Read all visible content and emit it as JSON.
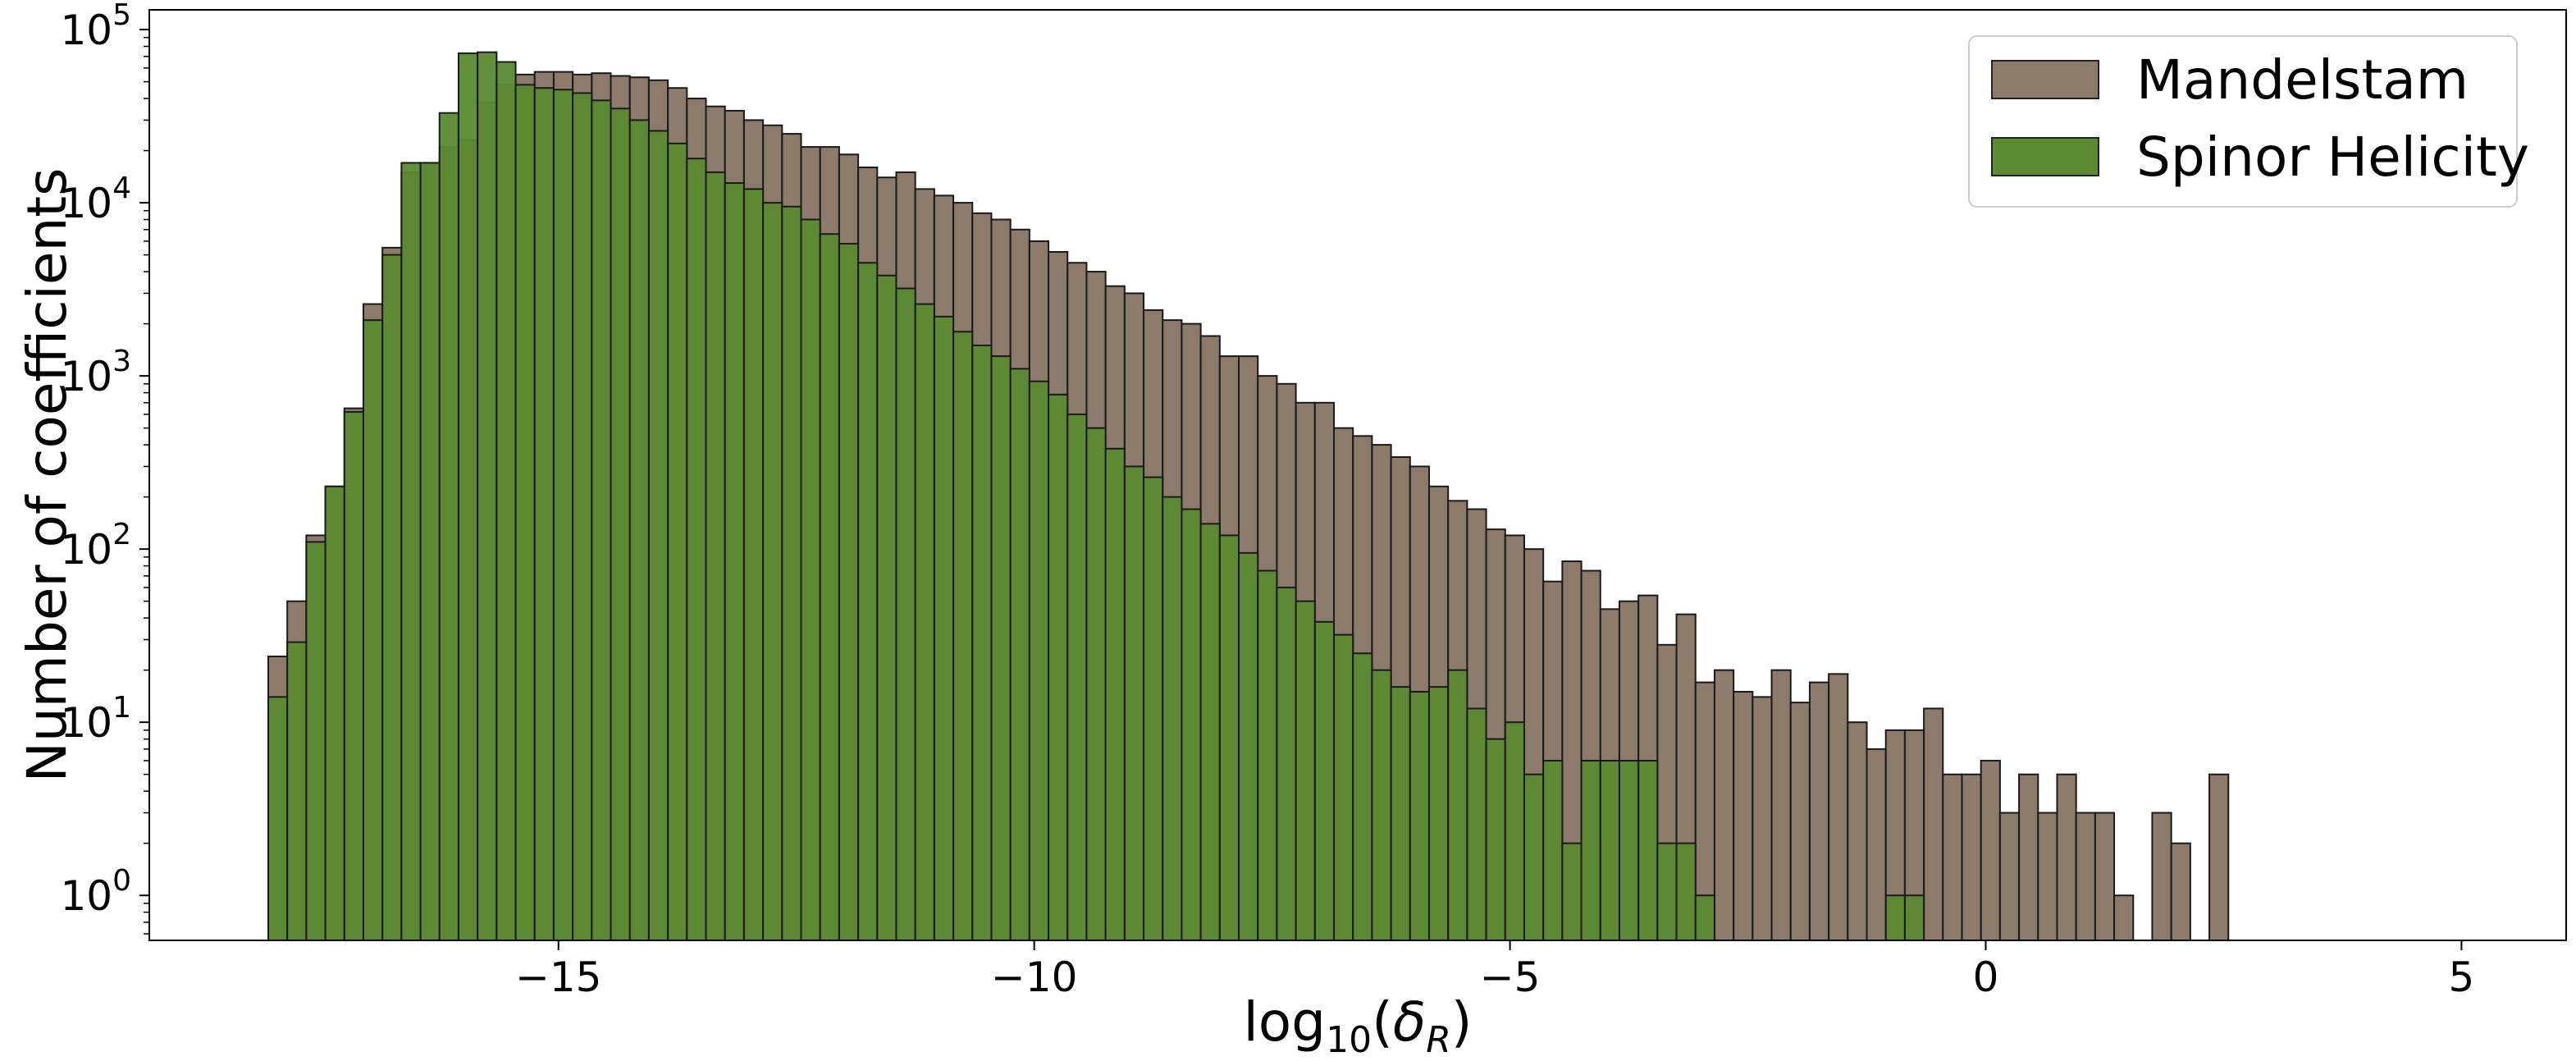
{
  "chart_data": {
    "type": "bar",
    "title": "",
    "xlabel": "log10(δR)",
    "xlabel_parts": {
      "base": "log",
      "sub": "10",
      "open": "(",
      "symbol": "δ",
      "symbol_sub": "R",
      "close": ")"
    },
    "ylabel": "Number of coefficients",
    "yscale": "log",
    "xlim": [
      -19.3,
      6.1
    ],
    "ylim": [
      0.55,
      130000
    ],
    "x_ticks": [
      -15,
      -10,
      -5,
      0,
      5
    ],
    "x_tick_labels": [
      "−15",
      "−10",
      "−5",
      "0",
      "5"
    ],
    "y_ticks": [
      1,
      10,
      100,
      1000,
      10000,
      100000
    ],
    "y_tick_labels": [
      {
        "base": "10",
        "exp": "0"
      },
      {
        "base": "10",
        "exp": "1"
      },
      {
        "base": "10",
        "exp": "2"
      },
      {
        "base": "10",
        "exp": "3"
      },
      {
        "base": "10",
        "exp": "4"
      },
      {
        "base": "10",
        "exp": "5"
      }
    ],
    "grid": false,
    "legend_position": "top-right",
    "bin_start": -18.05,
    "bin_width": 0.2,
    "series": [
      {
        "name": "Mandelstam",
        "color": "#8c7b6b",
        "values": [
          24,
          50,
          120,
          230,
          650,
          2600,
          5500,
          15000,
          17000,
          21000,
          23000,
          38000,
          48000,
          55000,
          57000,
          57000,
          55000,
          56000,
          54000,
          53000,
          51000,
          46000,
          40000,
          36000,
          34000,
          30000,
          28000,
          25000,
          21000,
          21000,
          19000,
          16000,
          14000,
          15000,
          12000,
          11000,
          10000,
          8700,
          8000,
          7000,
          6000,
          5200,
          4500,
          4000,
          3300,
          3000,
          2400,
          2100,
          2000,
          1700,
          1300,
          1300,
          1000,
          900,
          700,
          700,
          500,
          450,
          400,
          340,
          300,
          230,
          190,
          170,
          130,
          120,
          100,
          65,
          85,
          75,
          45,
          50,
          54,
          28,
          42,
          17,
          20,
          15,
          14,
          20,
          13,
          17,
          19,
          10,
          7,
          9,
          9,
          12,
          5,
          5,
          6,
          3,
          5,
          3,
          5,
          3,
          3,
          1,
          0,
          3,
          2,
          0,
          5
        ]
      },
      {
        "name": "Spinor Helicity",
        "color": "#5b8a33",
        "values": [
          14,
          29,
          110,
          230,
          620,
          2100,
          5000,
          17000,
          17000,
          33000,
          73000,
          74000,
          65000,
          48000,
          46000,
          45000,
          43000,
          39000,
          35000,
          30000,
          26000,
          22000,
          18000,
          15000,
          13000,
          12000,
          10000,
          9500,
          8000,
          6600,
          5800,
          4500,
          3800,
          3200,
          2600,
          2200,
          1800,
          1500,
          1300,
          1100,
          930,
          780,
          600,
          500,
          380,
          300,
          260,
          200,
          170,
          140,
          120,
          95,
          75,
          60,
          50,
          38,
          32,
          25,
          20,
          16,
          15,
          16,
          20,
          12,
          8,
          10,
          5,
          6,
          2,
          6,
          6,
          6,
          6,
          2,
          2,
          1,
          0,
          0,
          0,
          0,
          0,
          0,
          0,
          0,
          0,
          1,
          1
        ]
      }
    ]
  }
}
